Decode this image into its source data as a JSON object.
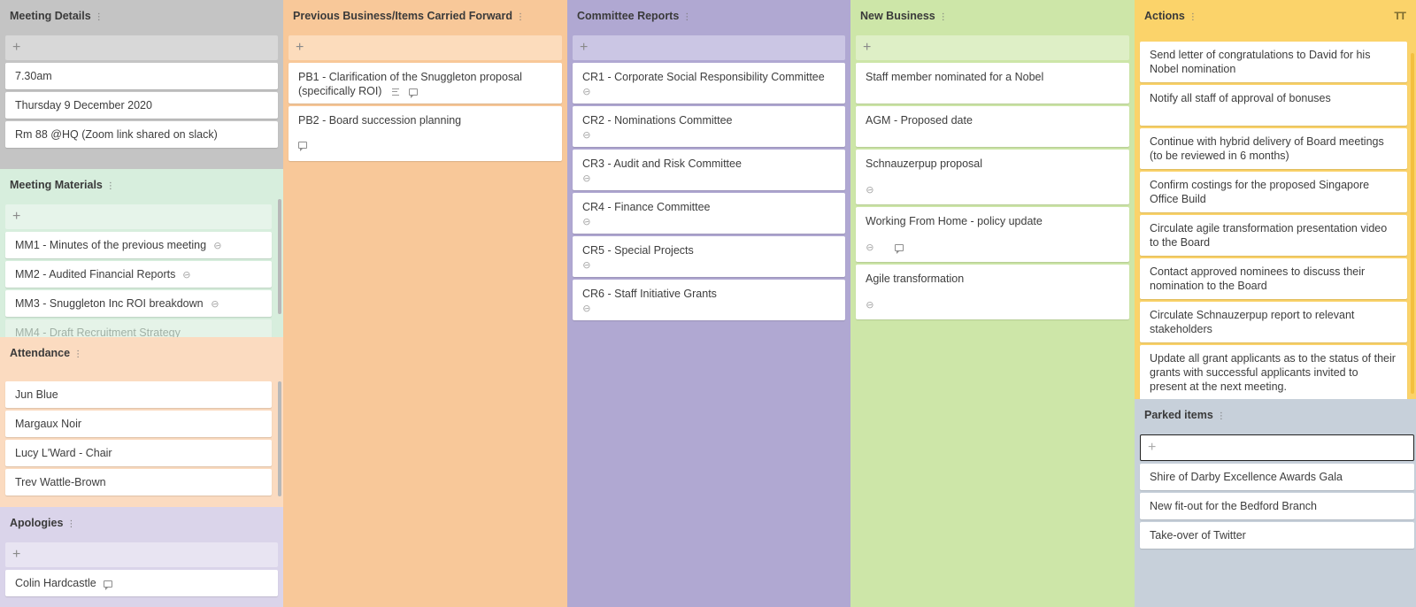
{
  "colors": {
    "meeting_details": "#c4c4c4",
    "meeting_details_add": "#d8d8d8",
    "meeting_materials": "#d7eedd",
    "meeting_materials_add": "#e6f4ea",
    "attendance": "#fbdbc0",
    "apologies": "#dad4ea",
    "apologies_add": "#e8e4f2",
    "previous_business": "#f8c899",
    "previous_business_add": "#fcdcbc",
    "committee_reports": "#b0a8d2",
    "committee_reports_add": "#cbc6e4",
    "new_business": "#cde6a8",
    "new_business_add": "#deefc6",
    "actions": "#fbd36a",
    "parked_items": "#c7d0da"
  },
  "meeting_details": {
    "title": "Meeting Details",
    "add": "+",
    "cards": [
      "7.30am",
      "Thursday 9 December 2020",
      "Rm 88 @HQ (Zoom link shared on slack)"
    ]
  },
  "meeting_materials": {
    "title": "Meeting Materials",
    "add": "+",
    "cards": [
      "MM1 - Minutes of the previous meeting",
      "MM2 - Audited Financial Reports",
      "MM3 - Snuggleton Inc ROI breakdown",
      "MM4 - Draft Recruitment Strategy"
    ]
  },
  "attendance": {
    "title": "Attendance",
    "cards": [
      "Jun Blue",
      "Margaux Noir",
      "Lucy L'Ward - Chair",
      "Trev Wattle-Brown"
    ]
  },
  "apologies": {
    "title": "Apologies",
    "add": "+",
    "cards": [
      "Colin Hardcastle"
    ]
  },
  "previous_business": {
    "title": "Previous Business/Items Carried Forward",
    "add": "+",
    "cards": [
      "PB1 - Clarification of the Snuggleton proposal (specifically ROI)",
      "PB2 - Board succession planning"
    ]
  },
  "committee_reports": {
    "title": "Committee Reports",
    "add": "+",
    "cards": [
      "CR1 - Corporate Social Responsibility Committee",
      "CR2 - Nominations Committee",
      "CR3 - Audit and Risk Committee",
      "CR4 - Finance Committee",
      "CR5 - Special Projects",
      "CR6 - Staff Initiative Grants"
    ]
  },
  "new_business": {
    "title": "New Business",
    "add": "+",
    "cards": [
      "Staff member nominated for a Nobel",
      "AGM - Proposed date",
      "Schnauzerpup proposal",
      "Working From Home - policy update",
      "Agile transformation"
    ]
  },
  "actions": {
    "title": "Actions",
    "text_size_icon": "TT",
    "cards": [
      "Send letter of congratulations to David for his Nobel nomination",
      "Notify all staff of approval of bonuses",
      "Continue with hybrid delivery of Board meetings (to be reviewed in 6 months)",
      "Confirm costings for the proposed Singapore Office Build",
      "Circulate agile transformation presentation video to the Board",
      "Contact approved nominees to discuss their nomination to the Board",
      "Circulate Schnauzerpup report to relevant stakeholders",
      "Update all grant applicants as to the status of their grants with successful applicants invited to present at the next meeting."
    ]
  },
  "parked_items": {
    "title": "Parked items",
    "add": "+",
    "cards": [
      "Shire of Darby Excellence Awards Gala",
      "New fit-out for the Bedford Branch",
      "Take-over of Twitter"
    ]
  },
  "icons": {
    "lane_menu": "⋮",
    "attachment": "paperclip-icon",
    "comment": "comment-icon",
    "description": "description-icon"
  }
}
